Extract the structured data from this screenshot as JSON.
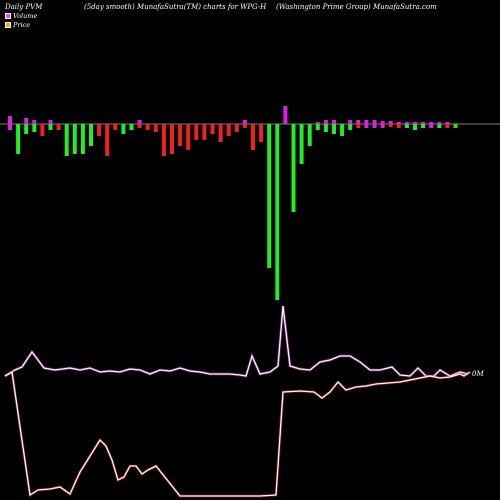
{
  "header": {
    "left": "Daily PVM",
    "center": "(5day smooth) MunafaSutra(TM) charts for WPG-H",
    "right": "(Washington  Prime  Group) MunafaSutra.com"
  },
  "legend": [
    {
      "label": "Volume",
      "color": "#ff44ff"
    },
    {
      "label": "Price",
      "color": "#ff9933"
    }
  ],
  "colors": {
    "up": "#22ee22",
    "down": "#ee2222",
    "pos": "#dd22dd",
    "baseline": "#aaaaaa",
    "line_upper": "#cc33cc",
    "line_lower": "#ee2222"
  },
  "chart_data": {
    "type": "bar",
    "end_label": "0M",
    "bars": [
      {
        "up": 8,
        "down": 6,
        "color": "pink"
      },
      {
        "up": 0,
        "down": 30,
        "color": "green"
      },
      {
        "up": 6,
        "down": 10,
        "color": "green"
      },
      {
        "up": 4,
        "down": 8,
        "color": "green"
      },
      {
        "up": 0,
        "down": 12,
        "color": "red"
      },
      {
        "up": 4,
        "down": 6,
        "color": "green"
      },
      {
        "up": 0,
        "down": 6,
        "color": "red"
      },
      {
        "up": 0,
        "down": 32,
        "color": "green"
      },
      {
        "up": 0,
        "down": 30,
        "color": "green"
      },
      {
        "up": 0,
        "down": 30,
        "color": "green"
      },
      {
        "up": 0,
        "down": 22,
        "color": "green"
      },
      {
        "up": 0,
        "down": 12,
        "color": "red"
      },
      {
        "up": 0,
        "down": 32,
        "color": "red"
      },
      {
        "up": 0,
        "down": 6,
        "color": "red"
      },
      {
        "up": 0,
        "down": 10,
        "color": "green"
      },
      {
        "up": 0,
        "down": 6,
        "color": "green"
      },
      {
        "up": 4,
        "down": 4,
        "color": "red"
      },
      {
        "up": 0,
        "down": 6,
        "color": "red"
      },
      {
        "up": 0,
        "down": 8,
        "color": "red"
      },
      {
        "up": 0,
        "down": 32,
        "color": "red"
      },
      {
        "up": 0,
        "down": 30,
        "color": "red"
      },
      {
        "up": 0,
        "down": 22,
        "color": "red"
      },
      {
        "up": 0,
        "down": 26,
        "color": "red"
      },
      {
        "up": 0,
        "down": 16,
        "color": "red"
      },
      {
        "up": 0,
        "down": 16,
        "color": "red"
      },
      {
        "up": 0,
        "down": 10,
        "color": "red"
      },
      {
        "up": 0,
        "down": 18,
        "color": "red"
      },
      {
        "up": 0,
        "down": 12,
        "color": "red"
      },
      {
        "up": 0,
        "down": 8,
        "color": "red"
      },
      {
        "up": 4,
        "down": 4,
        "color": "red"
      },
      {
        "up": 0,
        "down": 26,
        "color": "red"
      },
      {
        "up": 0,
        "down": 18,
        "color": "red"
      },
      {
        "up": 0,
        "down": 144,
        "color": "green"
      },
      {
        "up": 0,
        "down": 176,
        "color": "green"
      },
      {
        "up": 18,
        "down": 0,
        "color": "pink"
      },
      {
        "up": 0,
        "down": 88,
        "color": "green"
      },
      {
        "up": 0,
        "down": 40,
        "color": "green"
      },
      {
        "up": 0,
        "down": 22,
        "color": "green"
      },
      {
        "up": 2,
        "down": 6,
        "color": "green"
      },
      {
        "up": 4,
        "down": 8,
        "color": "green"
      },
      {
        "up": 4,
        "down": 10,
        "color": "green"
      },
      {
        "up": 0,
        "down": 12,
        "color": "green"
      },
      {
        "up": 4,
        "down": 6,
        "color": "green"
      },
      {
        "up": 4,
        "down": 4,
        "color": "red"
      },
      {
        "up": 4,
        "down": 4,
        "color": "pink"
      },
      {
        "up": 4,
        "down": 4,
        "color": "pink"
      },
      {
        "up": 3,
        "down": 4,
        "color": "pink"
      },
      {
        "up": 3,
        "down": 3,
        "color": "red"
      },
      {
        "up": 2,
        "down": 4,
        "color": "red"
      },
      {
        "up": 2,
        "down": 4,
        "color": "green"
      },
      {
        "up": 2,
        "down": 6,
        "color": "green"
      },
      {
        "up": 2,
        "down": 4,
        "color": "green"
      },
      {
        "up": 2,
        "down": 4,
        "color": "pink"
      },
      {
        "up": 2,
        "down": 4,
        "color": "green"
      },
      {
        "up": 2,
        "down": 4,
        "color": "red"
      },
      {
        "up": 0,
        "down": 4,
        "color": "green"
      }
    ],
    "upper_line": [
      {
        "x": 5,
        "y": 376
      },
      {
        "x": 15,
        "y": 370
      },
      {
        "x": 22,
        "y": 367
      },
      {
        "x": 32,
        "y": 352
      },
      {
        "x": 44,
        "y": 368
      },
      {
        "x": 55,
        "y": 370
      },
      {
        "x": 70,
        "y": 368
      },
      {
        "x": 80,
        "y": 370
      },
      {
        "x": 90,
        "y": 368
      },
      {
        "x": 100,
        "y": 372
      },
      {
        "x": 110,
        "y": 371
      },
      {
        "x": 120,
        "y": 372
      },
      {
        "x": 130,
        "y": 369
      },
      {
        "x": 140,
        "y": 370
      },
      {
        "x": 150,
        "y": 374
      },
      {
        "x": 160,
        "y": 370
      },
      {
        "x": 170,
        "y": 371
      },
      {
        "x": 180,
        "y": 368
      },
      {
        "x": 190,
        "y": 371
      },
      {
        "x": 200,
        "y": 372
      },
      {
        "x": 210,
        "y": 374
      },
      {
        "x": 220,
        "y": 374
      },
      {
        "x": 230,
        "y": 374
      },
      {
        "x": 240,
        "y": 375
      },
      {
        "x": 246,
        "y": 376
      },
      {
        "x": 252,
        "y": 356
      },
      {
        "x": 260,
        "y": 374
      },
      {
        "x": 270,
        "y": 372
      },
      {
        "x": 278,
        "y": 366
      },
      {
        "x": 283,
        "y": 306
      },
      {
        "x": 290,
        "y": 366
      },
      {
        "x": 300,
        "y": 369
      },
      {
        "x": 310,
        "y": 370
      },
      {
        "x": 320,
        "y": 362
      },
      {
        "x": 330,
        "y": 360
      },
      {
        "x": 340,
        "y": 356
      },
      {
        "x": 350,
        "y": 356
      },
      {
        "x": 360,
        "y": 362
      },
      {
        "x": 370,
        "y": 370
      },
      {
        "x": 380,
        "y": 370
      },
      {
        "x": 392,
        "y": 367
      },
      {
        "x": 400,
        "y": 375
      },
      {
        "x": 410,
        "y": 376
      },
      {
        "x": 418,
        "y": 368
      },
      {
        "x": 426,
        "y": 376
      },
      {
        "x": 434,
        "y": 376
      },
      {
        "x": 440,
        "y": 370
      },
      {
        "x": 450,
        "y": 376
      },
      {
        "x": 460,
        "y": 372
      },
      {
        "x": 468,
        "y": 374
      }
    ],
    "lower_line": [
      {
        "x": 5,
        "y": 376
      },
      {
        "x": 12,
        "y": 372
      },
      {
        "x": 30,
        "y": 495
      },
      {
        "x": 38,
        "y": 490
      },
      {
        "x": 50,
        "y": 489
      },
      {
        "x": 60,
        "y": 487
      },
      {
        "x": 70,
        "y": 494
      },
      {
        "x": 80,
        "y": 472
      },
      {
        "x": 90,
        "y": 456
      },
      {
        "x": 100,
        "y": 440
      },
      {
        "x": 106,
        "y": 446
      },
      {
        "x": 112,
        "y": 460
      },
      {
        "x": 118,
        "y": 480
      },
      {
        "x": 124,
        "y": 477
      },
      {
        "x": 130,
        "y": 466
      },
      {
        "x": 136,
        "y": 466
      },
      {
        "x": 142,
        "y": 474
      },
      {
        "x": 148,
        "y": 470
      },
      {
        "x": 156,
        "y": 466
      },
      {
        "x": 164,
        "y": 476
      },
      {
        "x": 172,
        "y": 486
      },
      {
        "x": 180,
        "y": 496
      },
      {
        "x": 190,
        "y": 496
      },
      {
        "x": 230,
        "y": 496
      },
      {
        "x": 260,
        "y": 496
      },
      {
        "x": 276,
        "y": 495
      },
      {
        "x": 283,
        "y": 392
      },
      {
        "x": 300,
        "y": 391
      },
      {
        "x": 314,
        "y": 392
      },
      {
        "x": 322,
        "y": 398
      },
      {
        "x": 330,
        "y": 392
      },
      {
        "x": 338,
        "y": 382
      },
      {
        "x": 346,
        "y": 390
      },
      {
        "x": 356,
        "y": 387
      },
      {
        "x": 366,
        "y": 386
      },
      {
        "x": 376,
        "y": 384
      },
      {
        "x": 388,
        "y": 383
      },
      {
        "x": 400,
        "y": 382
      },
      {
        "x": 410,
        "y": 380
      },
      {
        "x": 420,
        "y": 378
      },
      {
        "x": 430,
        "y": 376
      },
      {
        "x": 440,
        "y": 378
      },
      {
        "x": 450,
        "y": 377
      },
      {
        "x": 460,
        "y": 374
      },
      {
        "x": 464,
        "y": 376
      },
      {
        "x": 470,
        "y": 372
      }
    ]
  }
}
